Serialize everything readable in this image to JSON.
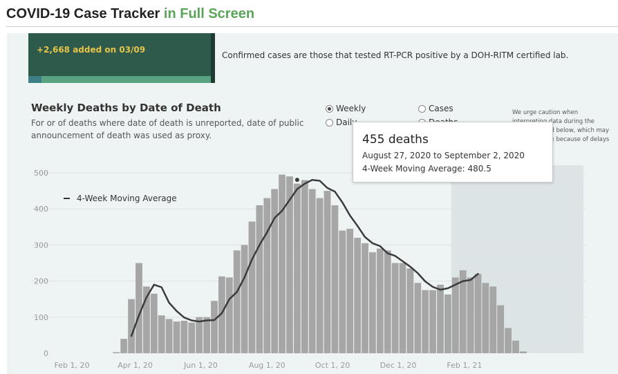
{
  "header": {
    "title_main": "COVID-19 Case Tracker",
    "title_accent": "in Full Screen"
  },
  "summary_card": {
    "added_text": "+2,668 added on 03/09"
  },
  "confirmed_note": "Confirmed cases are those that tested RT-PCR positive by a DOH-RITM certified lab.",
  "section": {
    "title": "Weekly Deaths by Date of Death",
    "description": "For  or  of deaths where date of death is unreported, date of public announcement of death was used as proxy."
  },
  "toggles": {
    "weekly_label": "Weekly",
    "daily_label": "Daily",
    "cases_label": "Cases",
    "deaths_label": "Deaths",
    "selected": "Weekly"
  },
  "caution_note": "We urge caution when interpreting data during the shaded period below, which may be incomplete because of delays in reporting.",
  "legend": {
    "moving_average_label": "4-Week Moving Average"
  },
  "tooltip": {
    "headline": "455 deaths",
    "dates": "August 27, 2020 to September 2, 2020",
    "moving_average": "4-Week Moving Average: 480.5"
  },
  "colors": {
    "bar": "#a5a6a5",
    "line": "#3b3b3b",
    "shaded": "#dde4e6",
    "panel": "#eef4f4",
    "card": "#2d5a4a",
    "accent_green": "#5aa45a"
  },
  "chart_data": {
    "type": "bar",
    "title": "Weekly Deaths by Date of Death",
    "xlabel": "",
    "ylabel": "",
    "ylim": [
      0,
      500
    ],
    "yticks": [
      0,
      100,
      200,
      300,
      400,
      500
    ],
    "x_tick_labels": [
      {
        "label": "Feb 1, 20",
        "index": 0
      },
      {
        "label": "Apr 1, 20",
        "index": 8.4
      },
      {
        "label": "Jun 1, 20",
        "index": 17.1
      },
      {
        "label": "Aug 1, 20",
        "index": 25.9
      },
      {
        "label": "Oct 1, 20",
        "index": 34.6
      },
      {
        "label": "Dec 1, 20",
        "index": 43.3
      },
      {
        "label": "Feb 1, 21",
        "index": 52.1
      }
    ],
    "first_bar_index": 7,
    "weekly_deaths": [
      3,
      40,
      150,
      250,
      185,
      165,
      105,
      95,
      88,
      90,
      85,
      100,
      100,
      145,
      213,
      210,
      285,
      300,
      365,
      410,
      430,
      455,
      495,
      490,
      470,
      480,
      455,
      430,
      450,
      410,
      340,
      345,
      320,
      305,
      280,
      290,
      285,
      250,
      250,
      235,
      195,
      175,
      175,
      190,
      163,
      210,
      230,
      210,
      220,
      195,
      185,
      133,
      70,
      35,
      5
    ],
    "moving_average_start": 2,
    "moving_average": [
      48,
      105,
      155,
      190,
      183,
      140,
      117,
      99,
      91,
      88,
      91,
      92,
      111,
      150,
      170,
      210,
      260,
      300,
      335,
      375,
      395,
      425,
      455,
      470,
      480.5,
      478,
      458,
      448,
      418,
      382,
      353,
      322,
      305,
      297,
      277,
      270,
      255,
      240,
      222,
      199,
      184,
      176,
      180,
      190,
      200,
      203,
      220
    ],
    "highlight": {
      "index": 24,
      "value": 455,
      "moving_average": 480.5
    },
    "shaded_from_index": 52,
    "series": [
      {
        "name": "4-Week Moving Average",
        "type": "line"
      }
    ]
  }
}
